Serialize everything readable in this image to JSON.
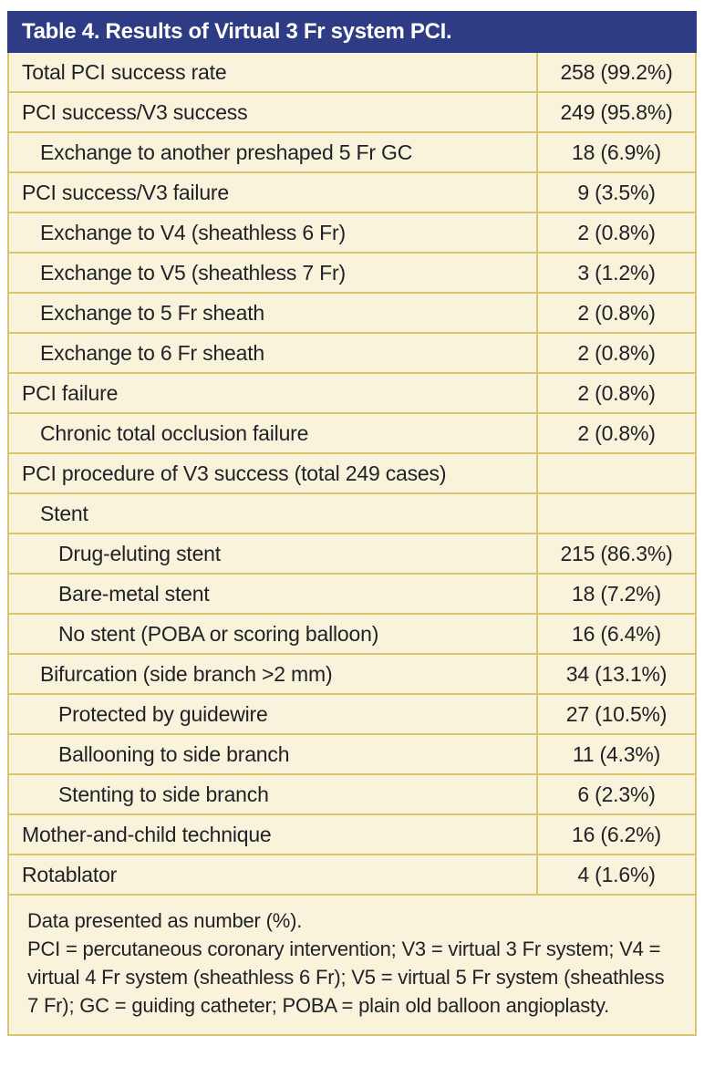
{
  "table": {
    "title": "Table 4. Results of Virtual 3 Fr system PCI.",
    "rows": [
      {
        "label": "Total PCI success rate",
        "value": "258 (99.2%)",
        "indent": 0
      },
      {
        "label": "PCI success/V3 success",
        "value": "249 (95.8%)",
        "indent": 0
      },
      {
        "label": "Exchange to another preshaped 5 Fr GC",
        "value": "18 (6.9%)",
        "indent": 1
      },
      {
        "label": "PCI success/V3 failure",
        "value": "9 (3.5%)",
        "indent": 0
      },
      {
        "label": "Exchange to V4 (sheathless 6 Fr)",
        "value": "2 (0.8%)",
        "indent": 1
      },
      {
        "label": "Exchange to V5 (sheathless 7 Fr)",
        "value": "3 (1.2%)",
        "indent": 1
      },
      {
        "label": "Exchange to 5 Fr sheath",
        "value": "2 (0.8%)",
        "indent": 1
      },
      {
        "label": "Exchange to 6 Fr sheath",
        "value": "2 (0.8%)",
        "indent": 1
      },
      {
        "label": "PCI failure",
        "value": "2 (0.8%)",
        "indent": 0
      },
      {
        "label": "Chronic total occlusion failure",
        "value": "2 (0.8%)",
        "indent": 1
      },
      {
        "label": "PCI procedure of V3 success (total 249 cases)",
        "value": "",
        "indent": 0
      },
      {
        "label": "Stent",
        "value": "",
        "indent": 1
      },
      {
        "label": "Drug-eluting stent",
        "value": "215 (86.3%)",
        "indent": 2
      },
      {
        "label": "Bare-metal stent",
        "value": "18 (7.2%)",
        "indent": 2
      },
      {
        "label": "No stent (POBA or scoring balloon)",
        "value": "16 (6.4%)",
        "indent": 2
      },
      {
        "label": "Bifurcation (side branch >2 mm)",
        "value": "34 (13.1%)",
        "indent": 1
      },
      {
        "label": "Protected by guidewire",
        "value": "27 (10.5%)",
        "indent": 2
      },
      {
        "label": "Ballooning to side branch",
        "value": "11 (4.3%)",
        "indent": 2
      },
      {
        "label": "Stenting to side branch",
        "value": "6 (2.3%)",
        "indent": 2
      },
      {
        "label": "Mother-and-child technique",
        "value": "16 (6.2%)",
        "indent": 0
      },
      {
        "label": "Rotablator",
        "value": "4 (1.6%)",
        "indent": 0
      }
    ],
    "footnote": {
      "line1": "Data presented as number (%).",
      "line2": "PCI = percutaneous coronary intervention; V3 = virtual 3 Fr system; V4 = virtual 4 Fr system (sheathless 6 Fr); V5 = virtual 5 Fr system (sheathless 7 Fr); GC = guiding catheter; POBA = plain old balloon angioplasty."
    }
  },
  "colors": {
    "header_bg": "#2e3c85",
    "header_fg": "#ffffff",
    "row_bg": "#faf3dc",
    "border": "#d9c470",
    "text": "#1e2126"
  }
}
